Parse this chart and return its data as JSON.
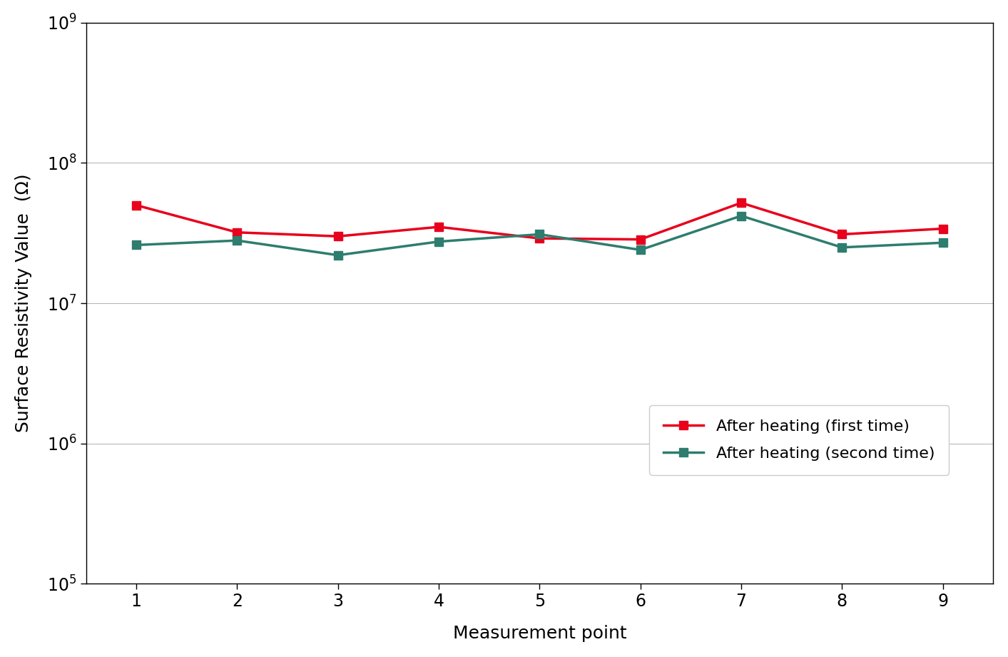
{
  "x": [
    1,
    2,
    3,
    4,
    5,
    6,
    7,
    8,
    9
  ],
  "series1_y": [
    50000000.0,
    32000000.0,
    30000000.0,
    35000000.0,
    29000000.0,
    28500000.0,
    52000000.0,
    31000000.0,
    34000000.0
  ],
  "series2_y": [
    26000000.0,
    28000000.0,
    22000000.0,
    27500000.0,
    31000000.0,
    24000000.0,
    42000000.0,
    25000000.0,
    27000000.0
  ],
  "series1_label": "After heating (first time)",
  "series2_label": "After heating (second time)",
  "series1_color": "#e8001c",
  "series2_color": "#2e7d6e",
  "xlabel": "Measurement point",
  "ylabel": "Surface Resistivity Value  (Ω)",
  "ylim_bottom": 100000.0,
  "ylim_top": 1000000000.0,
  "xlim_left": 0.5,
  "xlim_right": 9.5,
  "xticks": [
    1,
    2,
    3,
    4,
    5,
    6,
    7,
    8,
    9
  ],
  "background_color": "#ffffff",
  "grid_color": "#888888",
  "linewidth": 2.5,
  "markersize": 8,
  "label_fontsize": 18,
  "tick_fontsize": 17,
  "legend_fontsize": 16
}
